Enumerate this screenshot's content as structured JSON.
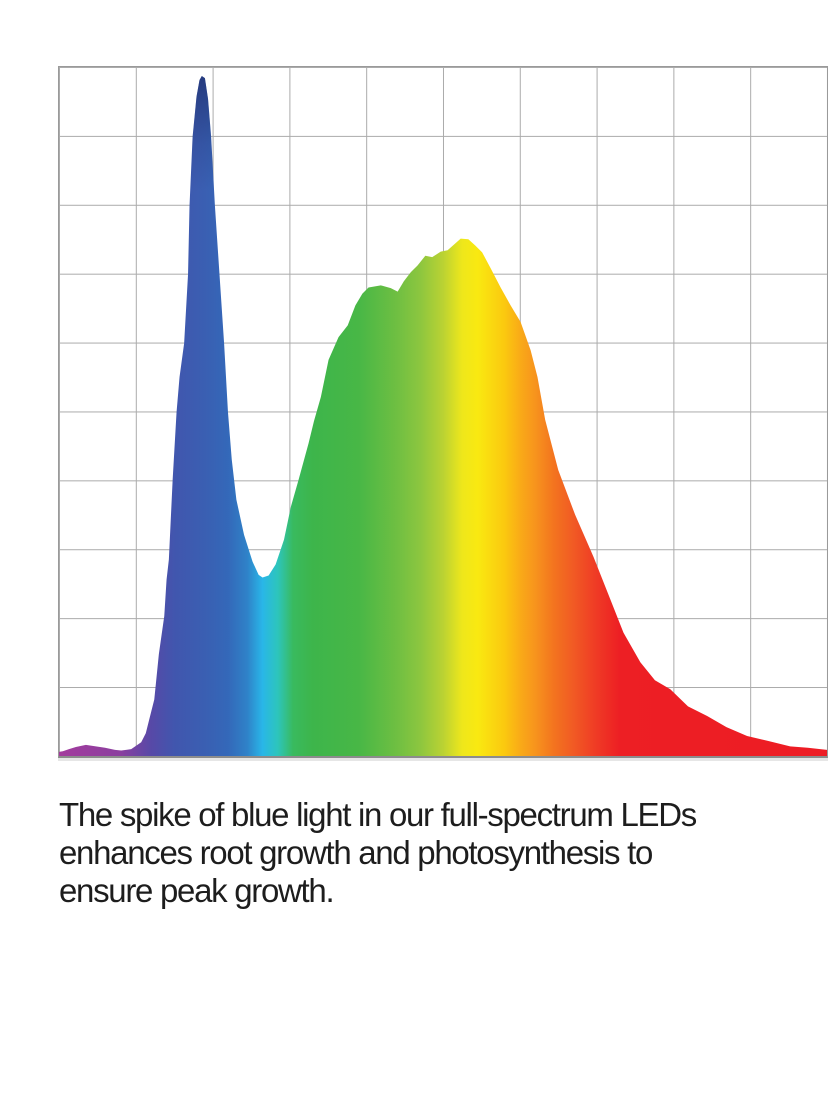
{
  "page": {
    "background_color": "#ffffff"
  },
  "chart_data": {
    "type": "area",
    "title": "",
    "subtitle": "",
    "xlabel": "",
    "ylabel": "",
    "axis_tick_labels": "none",
    "legend": "none",
    "grid": {
      "columns": 10,
      "rows": 10,
      "grid_on": true,
      "line_color": "#ababab",
      "border_color": "#9a9a9a"
    },
    "x_range_pct": [
      0,
      100
    ],
    "y_range_pct": [
      0,
      100
    ],
    "description": "Spectral power distribution of a full-spectrum LED: sharp royal-blue spike peaking ~99% intensity at ~19% of the x-axis, valley down to ~26% intensity at ~26.5%, broad green-yellow hump peaking ~75% intensity at ~52%, then a long red tail decaying toward the right edge. Fill is a horizontal rainbow gradient (magenta, blue, cyan, green, yellow, orange, red).",
    "points": [
      [
        0.0,
        0.6
      ],
      [
        0.5,
        0.7
      ],
      [
        1.3,
        1.0
      ],
      [
        2.2,
        1.3
      ],
      [
        3.5,
        1.6
      ],
      [
        4.8,
        1.4
      ],
      [
        6.0,
        1.2
      ],
      [
        7.3,
        0.9
      ],
      [
        8.1,
        0.8
      ],
      [
        9.4,
        1.0
      ],
      [
        10.7,
        2.0
      ],
      [
        11.3,
        3.3
      ],
      [
        11.7,
        5.1
      ],
      [
        12.4,
        8.2
      ],
      [
        13.0,
        14.8
      ],
      [
        13.7,
        20.3
      ],
      [
        14.0,
        25.6
      ],
      [
        14.3,
        28.5
      ],
      [
        14.8,
        40.1
      ],
      [
        15.3,
        49.9
      ],
      [
        15.7,
        55.0
      ],
      [
        16.3,
        59.9
      ],
      [
        16.8,
        69.9
      ],
      [
        17.0,
        79.9
      ],
      [
        17.4,
        89.9
      ],
      [
        17.9,
        95.7
      ],
      [
        18.3,
        98.1
      ],
      [
        18.6,
        98.7
      ],
      [
        19.0,
        98.4
      ],
      [
        19.4,
        95.4
      ],
      [
        19.8,
        89.9
      ],
      [
        20.3,
        79.9
      ],
      [
        20.9,
        69.9
      ],
      [
        21.5,
        59.9
      ],
      [
        22.0,
        49.9
      ],
      [
        22.5,
        43.0
      ],
      [
        23.1,
        37.2
      ],
      [
        24.1,
        32.1
      ],
      [
        25.2,
        28.2
      ],
      [
        26.0,
        26.3
      ],
      [
        26.5,
        25.9
      ],
      [
        27.3,
        26.2
      ],
      [
        28.2,
        27.8
      ],
      [
        29.3,
        31.4
      ],
      [
        30.2,
        36.2
      ],
      [
        31.2,
        40.1
      ],
      [
        32.5,
        45.4
      ],
      [
        33.2,
        48.6
      ],
      [
        34.1,
        52.1
      ],
      [
        35.1,
        57.5
      ],
      [
        36.4,
        60.8
      ],
      [
        37.6,
        62.5
      ],
      [
        38.6,
        65.4
      ],
      [
        39.5,
        67.1
      ],
      [
        40.3,
        68.0
      ],
      [
        41.9,
        68.3
      ],
      [
        43.2,
        67.9
      ],
      [
        44.1,
        67.4
      ],
      [
        44.9,
        68.9
      ],
      [
        45.8,
        70.2
      ],
      [
        46.7,
        71.2
      ],
      [
        47.7,
        72.6
      ],
      [
        48.6,
        72.4
      ],
      [
        49.7,
        73.2
      ],
      [
        50.6,
        73.4
      ],
      [
        51.4,
        74.2
      ],
      [
        52.3,
        75.1
      ],
      [
        53.3,
        75.0
      ],
      [
        54.2,
        74.1
      ],
      [
        55.1,
        73.1
      ],
      [
        56.2,
        70.8
      ],
      [
        57.5,
        68.0
      ],
      [
        58.8,
        65.4
      ],
      [
        60.1,
        63.0
      ],
      [
        61.4,
        58.9
      ],
      [
        62.3,
        55.0
      ],
      [
        63.3,
        48.8
      ],
      [
        65.0,
        41.5
      ],
      [
        67.2,
        35.0
      ],
      [
        69.6,
        28.9
      ],
      [
        71.8,
        22.7
      ],
      [
        73.5,
        17.9
      ],
      [
        75.7,
        13.6
      ],
      [
        77.6,
        11.0
      ],
      [
        79.6,
        9.7
      ],
      [
        81.9,
        7.2
      ],
      [
        84.4,
        5.8
      ],
      [
        86.9,
        4.2
      ],
      [
        89.6,
        2.9
      ],
      [
        92.3,
        2.2
      ],
      [
        95.2,
        1.4
      ],
      [
        97.5,
        1.2
      ],
      [
        100.0,
        0.9
      ]
    ],
    "spectrum_gradient_stops": [
      [
        0,
        "#a33b9d"
      ],
      [
        8,
        "#8b3f9f"
      ],
      [
        12,
        "#5749a7"
      ],
      [
        15,
        "#4156ae"
      ],
      [
        19,
        "#3a5fb2"
      ],
      [
        22,
        "#3468b9"
      ],
      [
        24.5,
        "#2f82c8"
      ],
      [
        26.5,
        "#29b6e8"
      ],
      [
        28.5,
        "#2dc5bb"
      ],
      [
        30.5,
        "#39ba5e"
      ],
      [
        33,
        "#3db54b"
      ],
      [
        39,
        "#48b746"
      ],
      [
        44,
        "#6fbf42"
      ],
      [
        47,
        "#8cc63f"
      ],
      [
        50,
        "#bad233"
      ],
      [
        52.5,
        "#eee71b"
      ],
      [
        54.5,
        "#f9e911"
      ],
      [
        58,
        "#fbc90f"
      ],
      [
        60,
        "#f9ab17"
      ],
      [
        62,
        "#f7941d"
      ],
      [
        64.5,
        "#f3731f"
      ],
      [
        67,
        "#f15a24"
      ],
      [
        70,
        "#ef3a25"
      ],
      [
        73,
        "#ed1f24"
      ],
      [
        100,
        "#ed1c24"
      ]
    ],
    "peak_shade": {
      "color_rgb": "20,30,85",
      "top_opacity": 0.55,
      "mid_opacity": 0.15,
      "mid_pct": 10,
      "fade_end_pct": 17
    }
  },
  "caption": {
    "lines": [
      "The spike of blue light in our full-spectrum LEDs",
      "enhances root growth and photosynthesis to",
      "ensure peak growth."
    ],
    "full_text": "The spike of blue light in our full-spectrum LEDs enhances root growth and photosynthesis to ensure peak growth.",
    "text_color": "#1d1d1d"
  }
}
